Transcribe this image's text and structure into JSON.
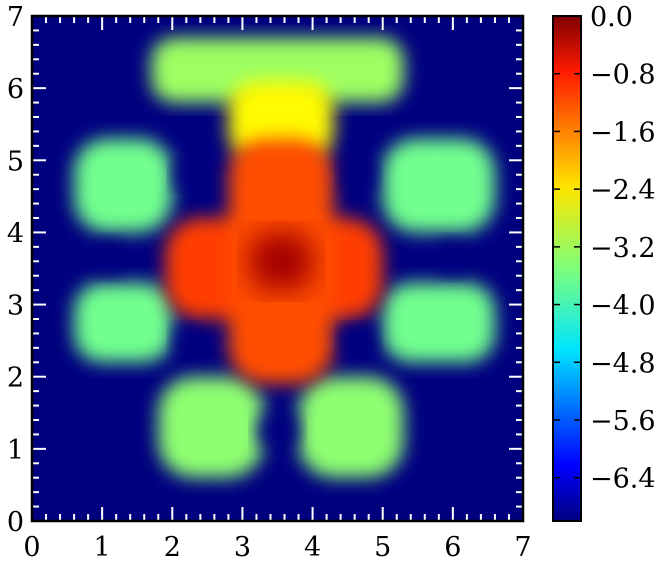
{
  "chart_data": {
    "type": "heatmap",
    "title": "",
    "xlabel": "",
    "ylabel": "",
    "xlim": [
      0,
      7
    ],
    "ylim": [
      0,
      7
    ],
    "x_ticks": [
      "0",
      "1",
      "2",
      "3",
      "4",
      "5",
      "6",
      "7"
    ],
    "y_ticks": [
      "0",
      "1",
      "2",
      "3",
      "4",
      "5",
      "6",
      "7"
    ],
    "colormap": "jet",
    "colorbar": {
      "range": [
        -7.0,
        0.0
      ],
      "tick_values": [
        0.0,
        -0.8,
        -1.6,
        -2.4,
        -3.2,
        -4.0,
        -4.8,
        -5.6,
        -6.4
      ],
      "tick_labels": [
        "0.0",
        "−0.8",
        "−1.6",
        "−2.4",
        "−3.2",
        "−4.0",
        "−4.8",
        "−5.6",
        "−6.4"
      ]
    },
    "background_value": -7.0,
    "regions": [
      {
        "name": "top-arch-outer",
        "x": [
          1.7,
          5.3
        ],
        "y": [
          5.8,
          6.7
        ],
        "value": -3.3
      },
      {
        "name": "top-arch-inner",
        "x": [
          2.8,
          4.3
        ],
        "y": [
          5.0,
          6.1
        ],
        "value": -2.6
      },
      {
        "name": "left-upper-lobe",
        "x": [
          0.6,
          2.0
        ],
        "y": [
          4.0,
          5.3
        ],
        "value": -3.6
      },
      {
        "name": "right-upper-lobe",
        "x": [
          5.0,
          6.6
        ],
        "y": [
          4.0,
          5.3
        ],
        "value": -3.6
      },
      {
        "name": "left-lower-lobe",
        "x": [
          0.6,
          2.0
        ],
        "y": [
          2.2,
          3.3
        ],
        "value": -3.6
      },
      {
        "name": "right-lower-lobe",
        "x": [
          5.0,
          6.6
        ],
        "y": [
          2.2,
          3.3
        ],
        "value": -3.6
      },
      {
        "name": "bottom-left-lobe",
        "x": [
          1.8,
          3.3
        ],
        "y": [
          0.6,
          2.0
        ],
        "value": -3.4
      },
      {
        "name": "bottom-right-lobe",
        "x": [
          3.8,
          5.3
        ],
        "y": [
          0.6,
          2.0
        ],
        "value": -3.4
      },
      {
        "name": "cross-horizontal",
        "x": [
          1.9,
          5.0
        ],
        "y": [
          2.8,
          4.2
        ],
        "value": -1.3
      },
      {
        "name": "cross-vertical",
        "x": [
          2.8,
          4.3
        ],
        "y": [
          1.9,
          5.3
        ],
        "value": -1.4
      },
      {
        "name": "center-peak",
        "x": [
          3.1,
          4.0
        ],
        "y": [
          3.2,
          4.0
        ],
        "value": -0.25
      }
    ],
    "holes": [
      {
        "name": "upper-left-hole",
        "x": [
          2.0,
          2.4
        ],
        "y": [
          4.6,
          5.0
        ]
      },
      {
        "name": "upper-right-hole",
        "x": [
          4.4,
          4.9
        ],
        "y": [
          4.6,
          5.0
        ]
      },
      {
        "name": "lower-left-hole",
        "x": [
          2.0,
          2.4
        ],
        "y": [
          2.3,
          2.7
        ]
      },
      {
        "name": "lower-right-hole",
        "x": [
          4.4,
          4.9
        ],
        "y": [
          2.3,
          2.7
        ]
      },
      {
        "name": "left-middle-hole",
        "x": [
          0.9,
          1.3
        ],
        "y": [
          3.4,
          3.9
        ]
      },
      {
        "name": "right-middle-hole",
        "x": [
          5.8,
          6.2
        ],
        "y": [
          3.4,
          3.9
        ]
      },
      {
        "name": "bottom-middle-hole",
        "x": [
          3.2,
          3.8
        ],
        "y": [
          1.0,
          1.5
        ]
      }
    ]
  }
}
